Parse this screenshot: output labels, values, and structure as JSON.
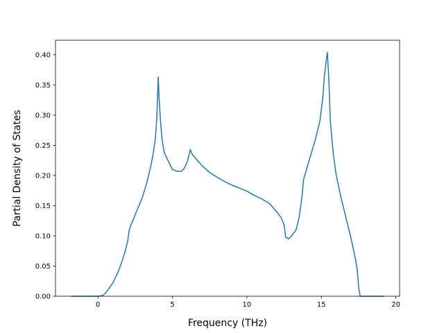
{
  "chart_data": {
    "type": "line",
    "xlabel": "Frequency (THz)",
    "ylabel": "Partial Density of States",
    "xlim": [
      -2.85,
      20.25
    ],
    "ylim": [
      0,
      0.424
    ],
    "xticks": [
      0,
      5,
      10,
      15,
      20
    ],
    "yticks": [
      {
        "value": 0,
        "label": "0.00"
      },
      {
        "value": 0.05,
        "label": "0.05"
      },
      {
        "value": 0.1,
        "label": "0.10"
      },
      {
        "value": 0.15,
        "label": "0.15"
      },
      {
        "value": 0.2,
        "label": "0.20"
      },
      {
        "value": 0.25,
        "label": "0.25"
      },
      {
        "value": 0.3,
        "label": "0.30"
      },
      {
        "value": 0.35,
        "label": "0.35"
      },
      {
        "value": 0.4,
        "label": "0.40"
      }
    ],
    "x": [
      -1.8,
      0,
      0.3,
      0.5,
      0.8,
      1.0,
      1.2,
      1.4,
      1.6,
      1.8,
      2.0,
      2.1,
      2.2,
      2.5,
      2.8,
      3.0,
      3.3,
      3.5,
      3.7,
      3.85,
      3.95,
      4.0,
      4.05,
      4.1,
      4.2,
      4.3,
      4.45,
      4.7,
      5.0,
      5.3,
      5.6,
      5.8,
      6.0,
      6.1,
      6.2,
      6.3,
      6.6,
      7.0,
      7.5,
      8.0,
      8.5,
      9.0,
      9.5,
      10.0,
      10.5,
      11.0,
      11.5,
      12.0,
      12.3,
      12.5,
      12.6,
      12.8,
      13.0,
      13.3,
      13.5,
      13.7,
      13.8,
      14.0,
      14.3,
      14.6,
      14.9,
      15.1,
      15.2,
      15.3,
      15.4,
      15.5,
      15.6,
      15.8,
      16.0,
      16.3,
      16.6,
      17.0,
      17.3,
      17.4,
      17.5,
      17.6,
      18.0,
      19.2
    ],
    "series": [
      {
        "color": "#1f77b4",
        "values": [
          0,
          0,
          0.001,
          0.005,
          0.015,
          0.022,
          0.032,
          0.043,
          0.057,
          0.072,
          0.092,
          0.11,
          0.117,
          0.135,
          0.153,
          0.165,
          0.19,
          0.21,
          0.235,
          0.26,
          0.295,
          0.33,
          0.363,
          0.33,
          0.29,
          0.26,
          0.238,
          0.225,
          0.21,
          0.207,
          0.207,
          0.212,
          0.223,
          0.233,
          0.243,
          0.236,
          0.227,
          0.216,
          0.205,
          0.197,
          0.19,
          0.184,
          0.179,
          0.174,
          0.167,
          0.161,
          0.154,
          0.14,
          0.13,
          0.118,
          0.098,
          0.095,
          0.1,
          0.11,
          0.13,
          0.165,
          0.193,
          0.21,
          0.235,
          0.26,
          0.29,
          0.33,
          0.365,
          0.385,
          0.404,
          0.36,
          0.29,
          0.235,
          0.2,
          0.165,
          0.135,
          0.095,
          0.06,
          0.045,
          0.015,
          0,
          0,
          0
        ]
      }
    ]
  }
}
